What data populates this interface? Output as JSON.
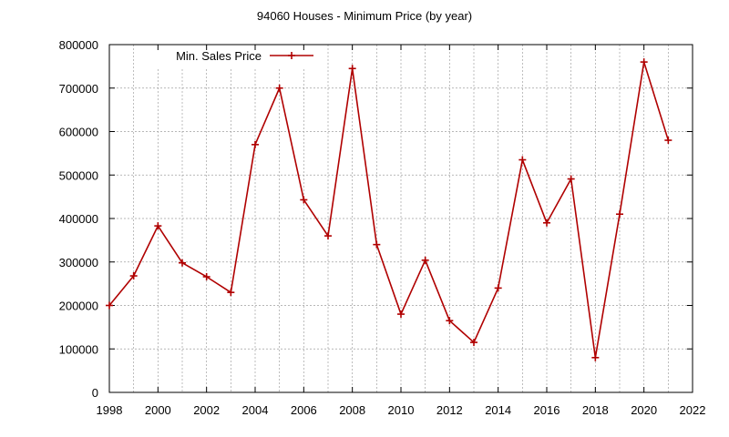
{
  "chart_data": {
    "type": "line",
    "title": "94060 Houses - Minimum Price (by year)",
    "xlabel": "",
    "ylabel": "",
    "xlim": [
      1998,
      2022
    ],
    "ylim": [
      0,
      800000
    ],
    "xticks": [
      1998,
      2000,
      2002,
      2004,
      2006,
      2008,
      2010,
      2012,
      2014,
      2016,
      2018,
      2020,
      2022
    ],
    "yticks": [
      0,
      100000,
      200000,
      300000,
      400000,
      500000,
      600000,
      700000,
      800000
    ],
    "grid": true,
    "legend_position": "top-left",
    "series": [
      {
        "name": "Min. Sales Price",
        "color": "#b00000",
        "marker": "plus",
        "x": [
          1998,
          1999,
          2000,
          2001,
          2002,
          2003,
          2004,
          2005,
          2006,
          2007,
          2008,
          2009,
          2010,
          2011,
          2012,
          2013,
          2014,
          2015,
          2016,
          2017,
          2018,
          2019,
          2020,
          2021
        ],
        "y": [
          200000,
          268000,
          383000,
          298000,
          266000,
          230000,
          570000,
          700000,
          443000,
          360000,
          745000,
          340000,
          180000,
          304000,
          165000,
          115000,
          240000,
          535000,
          390000,
          491000,
          80000,
          410000,
          760000,
          580000
        ]
      }
    ]
  }
}
